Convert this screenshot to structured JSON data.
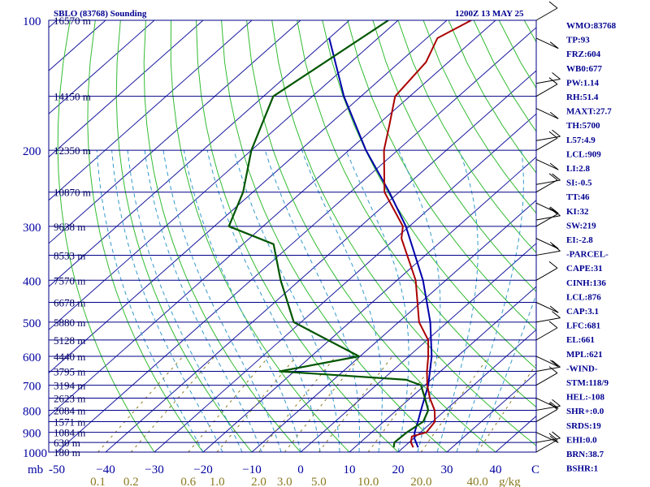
{
  "header": {
    "station": "SBLO (83768) Sounding",
    "time": "1200Z 13 MAY 25"
  },
  "colors": {
    "isobar": "#000088",
    "isotherm": "#1a1aa0",
    "dry_adiabat": "#33bb33",
    "moist_adiabat": "#3399cc",
    "mixing_ratio": "#8a7a20",
    "temperature": "#aa0000",
    "dewpoint": "#005500",
    "parcel": "#0000aa",
    "wind_barb": "#000000"
  },
  "chart_data": {
    "type": "skew-t",
    "pressure_axis_label": "mb",
    "pressure_levels": [
      100,
      200,
      300,
      400,
      500,
      600,
      700,
      800,
      900,
      1000
    ],
    "pressure_tick_labels": [
      "100",
      "200",
      "300",
      "400",
      "500",
      "600",
      "700",
      "800",
      "900",
      "1000"
    ],
    "height_labels": [
      {
        "p": 100,
        "text": "16570 m"
      },
      {
        "p": 150,
        "text": "14150 m"
      },
      {
        "p": 200,
        "text": "12350 m"
      },
      {
        "p": 250,
        "text": "10870 m"
      },
      {
        "p": 300,
        "text": "9638 m"
      },
      {
        "p": 350,
        "text": "8533 m"
      },
      {
        "p": 400,
        "text": "7570 m"
      },
      {
        "p": 450,
        "text": "6678 m"
      },
      {
        "p": 500,
        "text": "5880 m"
      },
      {
        "p": 550,
        "text": "5128 m"
      },
      {
        "p": 600,
        "text": "4440 m"
      },
      {
        "p": 650,
        "text": "3795 m"
      },
      {
        "p": 700,
        "text": "3194 m"
      },
      {
        "p": 750,
        "text": "2623 m"
      },
      {
        "p": 800,
        "text": "2084 m"
      },
      {
        "p": 850,
        "text": "1571 m"
      },
      {
        "p": 900,
        "text": "1084 m"
      },
      {
        "p": 950,
        "text": "630 m"
      },
      {
        "p": 1000,
        "text": "180 m"
      }
    ],
    "temperature_ticks": [
      -50,
      -40,
      -30,
      -20,
      -10,
      0,
      10,
      20,
      30,
      40
    ],
    "temperature_tick_labels": [
      "-50",
      "−40",
      "−30",
      "−20",
      "−10",
      "0",
      "10",
      "20",
      "30",
      "40"
    ],
    "temperature_axis_end_label": "C",
    "mixing_ratio_labels": [
      "0.1",
      "0.2",
      "0.6",
      "1.0",
      "2.0",
      "3.0",
      "5.0",
      "10.0",
      "20.0",
      "40.0"
    ],
    "mixing_ratio_unit": "g/kg",
    "xlim_bottom_C": [
      -50,
      50
    ],
    "ylim_mb": [
      100,
      1000
    ],
    "temperature_profile": [
      {
        "p": 100,
        "t": -65.0
      },
      {
        "p": 110,
        "t": -67.8
      },
      {
        "p": 125,
        "t": -64.6
      },
      {
        "p": 150,
        "t": -63.0
      },
      {
        "p": 175,
        "t": -57.5
      },
      {
        "p": 200,
        "t": -52.8
      },
      {
        "p": 250,
        "t": -43.0
      },
      {
        "p": 300,
        "t": -31.3
      },
      {
        "p": 320,
        "t": -28.8
      },
      {
        "p": 400,
        "t": -16.2
      },
      {
        "p": 500,
        "t": -5.8
      },
      {
        "p": 550,
        "t": 0.2
      },
      {
        "p": 600,
        "t": 4.0
      },
      {
        "p": 650,
        "t": 7.2
      },
      {
        "p": 700,
        "t": 10.5
      },
      {
        "p": 750,
        "t": 14.0
      },
      {
        "p": 800,
        "t": 17.8
      },
      {
        "p": 850,
        "t": 20.5
      },
      {
        "p": 900,
        "t": 21.2
      },
      {
        "p": 920,
        "t": 19.2
      },
      {
        "p": 950,
        "t": 20.4
      },
      {
        "p": 975,
        "t": 22.0
      }
    ],
    "dewpoint_profile": [
      {
        "p": 100,
        "td": -82.0
      },
      {
        "p": 150,
        "td": -88.0
      },
      {
        "p": 200,
        "td": -80.0
      },
      {
        "p": 250,
        "td": -72.0
      },
      {
        "p": 300,
        "td": -67.0
      },
      {
        "p": 330,
        "td": -53.7
      },
      {
        "p": 400,
        "td": -43.9
      },
      {
        "p": 500,
        "td": -31.5
      },
      {
        "p": 600,
        "td": -10.2
      },
      {
        "p": 650,
        "td": -23.0
      },
      {
        "p": 680,
        "td": 4.9
      },
      {
        "p": 700,
        "td": 9.2
      },
      {
        "p": 750,
        "td": 13.0
      },
      {
        "p": 800,
        "td": 16.5
      },
      {
        "p": 850,
        "td": 18.1
      },
      {
        "p": 900,
        "td": 17.2
      },
      {
        "p": 950,
        "td": 17.0
      },
      {
        "p": 975,
        "td": 18.0
      }
    ],
    "parcel_profile": [
      {
        "p": 975,
        "t": 23.0
      },
      {
        "p": 930,
        "t": 20.2
      },
      {
        "p": 900,
        "t": 18.8
      },
      {
        "p": 850,
        "t": 17.0
      },
      {
        "p": 800,
        "t": 15.0
      },
      {
        "p": 700,
        "t": 10.7
      },
      {
        "p": 600,
        "t": 4.7
      },
      {
        "p": 500,
        "t": -3.5
      },
      {
        "p": 400,
        "t": -14.7
      },
      {
        "p": 300,
        "t": -30.7
      },
      {
        "p": 250,
        "t": -42.0
      },
      {
        "p": 200,
        "t": -56.5
      },
      {
        "p": 150,
        "t": -73.5
      },
      {
        "p": 110,
        "t": -90.0
      }
    ],
    "wind_barb_levels": [
      100,
      110,
      140,
      150,
      160,
      190,
      200,
      210,
      240,
      250,
      265,
      290,
      300,
      320,
      350,
      400,
      450,
      500,
      550,
      600,
      650,
      700,
      750,
      800,
      850,
      900,
      950,
      1000
    ]
  },
  "indices": [
    {
      "text": "WMO:83768"
    },
    {
      "text": "TP:93"
    },
    {
      "text": "FRZ:604"
    },
    {
      "text": "WB0:677"
    },
    {
      "text": "PW:1.14"
    },
    {
      "text": "RH:51.4"
    },
    {
      "text": "MAXT:27.7"
    },
    {
      "text": "TH:5700"
    },
    {
      "text": "L57:4.9"
    },
    {
      "text": "LCL:909"
    },
    {
      "text": "LI:2.8"
    },
    {
      "text": "SI:-0.5"
    },
    {
      "text": "TT:46"
    },
    {
      "text": "KI:32"
    },
    {
      "text": "SW:219"
    },
    {
      "text": "EI:-2.8"
    },
    {
      "text": "-PARCEL-"
    },
    {
      "text": "CAPE:31"
    },
    {
      "text": "CINH:136"
    },
    {
      "text": "LCL:876"
    },
    {
      "text": "CAP:3.1"
    },
    {
      "text": "LFC:681"
    },
    {
      "text": "EL:661"
    },
    {
      "text": "MPL:621"
    },
    {
      "text": "-WIND-"
    },
    {
      "text": "STM:118/9"
    },
    {
      "text": "HEL:-108"
    },
    {
      "text": "SHR+:0.0"
    },
    {
      "text": "SRDS:19"
    },
    {
      "text": "EHI:0.0"
    },
    {
      "text": "BRN:38.7"
    },
    {
      "text": "BSHR:1"
    }
  ]
}
